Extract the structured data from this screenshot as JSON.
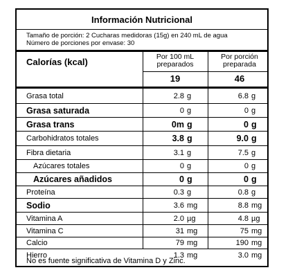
{
  "title": "Información Nutricional",
  "serving": {
    "size": "Tamaño de porción: 2 Cucharas medidoras (15g) en 240 mL de agua",
    "servings": "Número de porciones por envase: 30"
  },
  "header": {
    "calories_label": "Calorías (kcal)",
    "col1_label_line1": "Por 100 mL",
    "col1_label_line2": "preparados",
    "col2_label_line1": "Por porción",
    "col2_label_line2": "preparada",
    "col1_value": "19",
    "col2_value": "46"
  },
  "rows": [
    {
      "name": "Grasa total",
      "v1": "2.8",
      "u1": "g",
      "v2": "6.8",
      "u2": "g",
      "style": "normal"
    },
    {
      "name": "Grasa saturada",
      "v1": "0",
      "u1": "g",
      "v2": "0",
      "u2": "g",
      "style": "bold-name"
    },
    {
      "name": "Grasa trans",
      "v1": "0m",
      "u1": "g",
      "v2": "0",
      "u2": "g",
      "style": "bold"
    },
    {
      "name": "Carbohidratos totales",
      "v1": "3.8",
      "u1": "g",
      "v2": "9.0",
      "u2": "g",
      "style": "bold-val"
    },
    {
      "name": "Fibra dietaria",
      "v1": "3.1",
      "u1": "g",
      "v2": "7.5",
      "u2": "g",
      "style": "normal"
    },
    {
      "name": "Azúcares totales",
      "v1": "0",
      "u1": "g",
      "v2": "0",
      "u2": "g",
      "style": "indent"
    },
    {
      "name": "Azúcares añadidos",
      "v1": "0",
      "u1": "g",
      "v2": "0",
      "u2": "g",
      "style": "bold-indent"
    },
    {
      "name": "Proteína",
      "v1": "0.3",
      "u1": "g",
      "v2": "0.8",
      "u2": "g",
      "style": "normal"
    },
    {
      "name": "Sodio",
      "v1": "3.6",
      "u1": "mg",
      "v2": "8.8",
      "u2": "mg",
      "style": "bold-name"
    },
    {
      "name": "Vitamina A",
      "v1": "2.0",
      "u1": "µg",
      "v2": "4.8",
      "u2": "µg",
      "style": "normal"
    },
    {
      "name": "Vitamina C",
      "v1": "31",
      "u1": "mg",
      "v2": "75",
      "u2": "mg",
      "style": "normal"
    },
    {
      "name": "Calcio",
      "v1": "79",
      "u1": "mg",
      "v2": "190",
      "u2": "mg",
      "style": "normal"
    },
    {
      "name": "Hierro",
      "v1": "1.3",
      "u1": "mg",
      "v2": "3.0",
      "u2": "mg",
      "style": "normal"
    }
  ],
  "footnote": "No es fuente significativa de Vitamina D y Zinc."
}
